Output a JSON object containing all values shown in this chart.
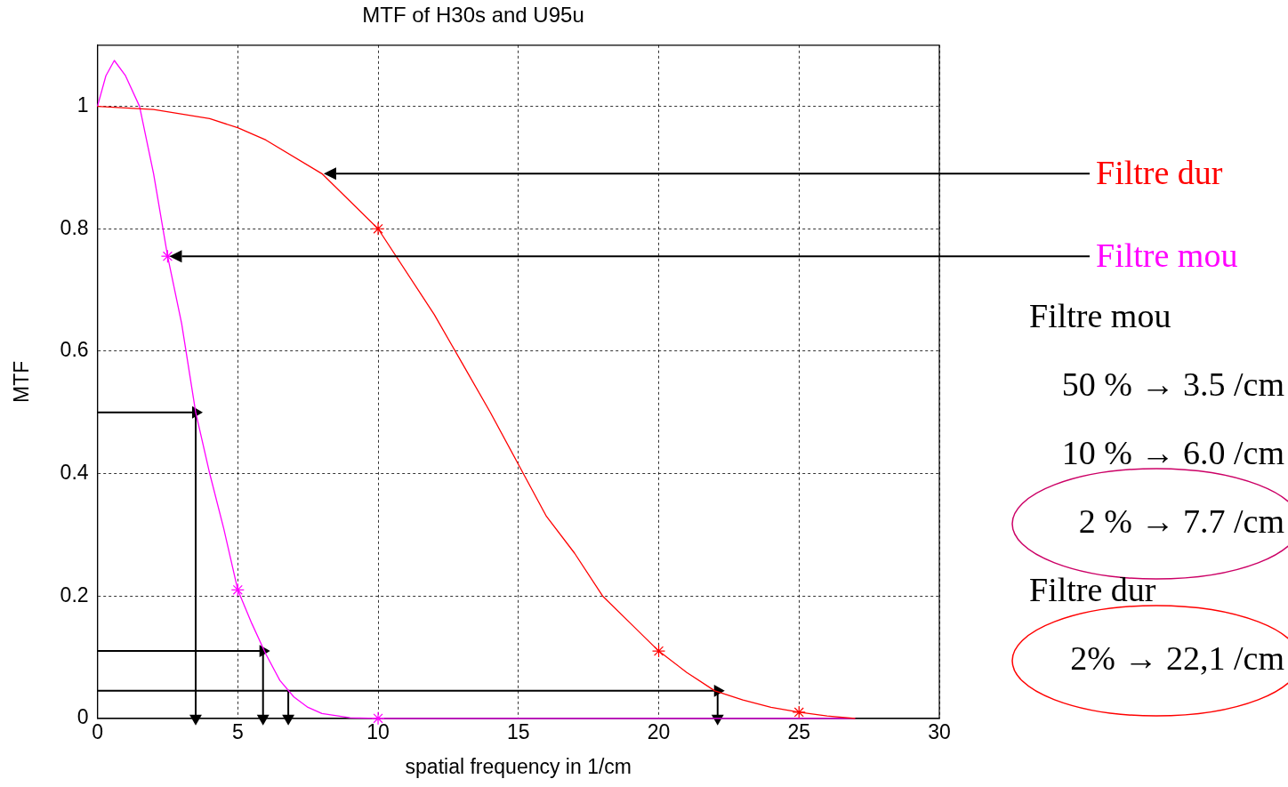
{
  "chart_data": {
    "type": "line",
    "title": "MTF of H30s and U95u",
    "xlabel": "spatial frequency in 1/cm",
    "ylabel": "MTF",
    "xlim": [
      0,
      30
    ],
    "xticks": [
      0,
      5,
      10,
      15,
      20,
      25,
      30
    ],
    "ylim": [
      0,
      1.1
    ],
    "yticks": [
      0,
      0.2,
      0.4,
      0.6,
      0.8,
      1
    ],
    "grid": true,
    "legend": false,
    "series": [
      {
        "name": "Filtre dur",
        "color": "#ff0000",
        "marker": "none",
        "x": [
          0,
          2,
          4,
          5,
          6,
          8,
          10,
          12,
          13,
          14,
          15,
          16,
          17,
          18,
          19,
          20,
          21,
          22,
          23,
          24,
          25,
          26,
          27
        ],
        "values": [
          1,
          0.995,
          0.98,
          0.965,
          0.945,
          0.89,
          0.8,
          0.66,
          0.58,
          0.5,
          0.415,
          0.33,
          0.27,
          0.2,
          0.155,
          0.11,
          0.075,
          0.045,
          0.03,
          0.018,
          0.01,
          0.004,
          0
        ]
      },
      {
        "name": "Filtre mou",
        "color": "#ff00ff",
        "marker": "none",
        "x": [
          0,
          0.3,
          0.6,
          1,
          1.5,
          2,
          2.5,
          3,
          3.5,
          4,
          4.5,
          5,
          5.5,
          6,
          6.5,
          7,
          7.5,
          8,
          9,
          10,
          27
        ],
        "values": [
          1,
          1.05,
          1.075,
          1.05,
          1.0,
          0.89,
          0.755,
          0.645,
          0.5,
          0.4,
          0.31,
          0.21,
          0.155,
          0.105,
          0.062,
          0.035,
          0.018,
          0.008,
          0.001,
          0,
          0
        ]
      },
      {
        "type": "scatter",
        "color": "#ff0000",
        "marker": "cross",
        "x": [
          10,
          20,
          25
        ],
        "values": [
          0.8,
          0.11,
          0.01
        ]
      },
      {
        "type": "scatter",
        "color": "#ff00ff",
        "marker": "cross",
        "x": [
          2.5,
          5,
          10
        ],
        "values": [
          0.755,
          0.21,
          0
        ]
      },
      {
        "type": "line",
        "color": "#000000",
        "marker": "triangle",
        "x": [
          0,
          3.5,
          3.5
        ],
        "values": [
          0.5,
          0.5,
          0
        ]
      },
      {
        "type": "line",
        "color": "#000000",
        "marker": "triangle",
        "x": [
          0,
          5.9,
          5.9
        ],
        "values": [
          0.11,
          0.11,
          0
        ]
      },
      {
        "type": "line",
        "color": "#000000",
        "marker": "triangle",
        "x": [
          0,
          22.1,
          22.1
        ],
        "values": [
          0.045,
          0.045,
          0
        ]
      },
      {
        "type": "line",
        "color": "#000000",
        "marker": "triangle",
        "x": [
          6.8,
          6.8
        ],
        "values": [
          0.045,
          0
        ]
      }
    ],
    "annotations": [
      "Filtre mou",
      "50 % → 3.5 /cm",
      "10 % → 6.0 /cm",
      "2 % → 7.7 /cm",
      "Filtre dur",
      "2% → 22,1 /cm"
    ]
  }
}
